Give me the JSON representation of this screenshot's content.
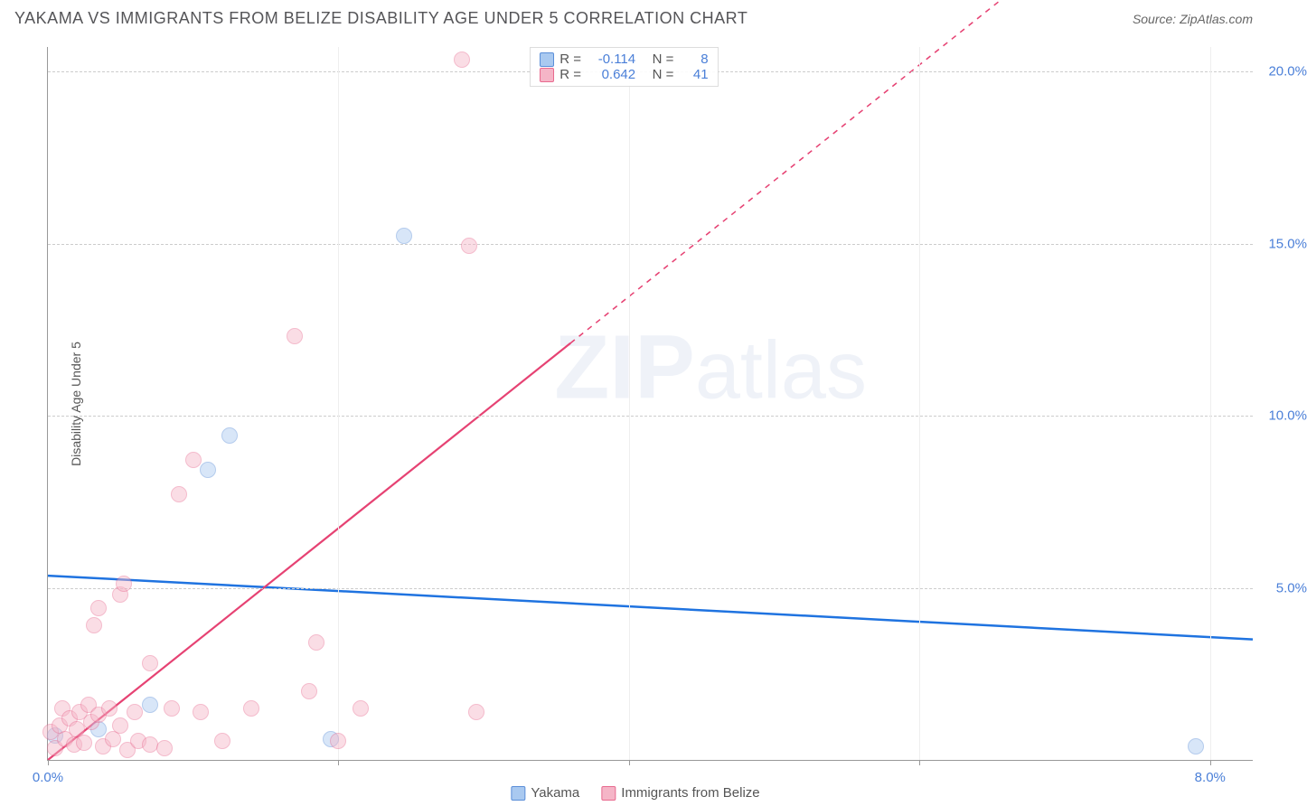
{
  "header": {
    "title": "YAKAMA VS IMMIGRANTS FROM BELIZE DISABILITY AGE UNDER 5 CORRELATION CHART",
    "source": "Source: ZipAtlas.com"
  },
  "watermark": {
    "bold": "ZIP",
    "rest": "atlas"
  },
  "chart": {
    "type": "scatter",
    "y_axis_label": "Disability Age Under 5",
    "xlim": [
      0,
      8.3
    ],
    "ylim": [
      0,
      20.7
    ],
    "x_ticks": [
      0,
      2,
      4,
      6,
      8
    ],
    "x_tick_labels": [
      "0.0%",
      "",
      "",
      "",
      "8.0%"
    ],
    "y_ticks": [
      5,
      10,
      15,
      20
    ],
    "y_tick_labels": [
      "5.0%",
      "10.0%",
      "15.0%",
      "20.0%"
    ],
    "background_color": "#ffffff",
    "grid_color": "#cccccc",
    "axis_color": "#999999",
    "tick_label_color": "#4a7fd8",
    "tick_label_fontsize": 15,
    "marker_radius": 9,
    "marker_opacity": 0.45,
    "series": [
      {
        "name": "Yakama",
        "color_fill": "#a9c9f0",
        "color_stroke": "#5a8ed8",
        "R": "-0.114",
        "N": "8",
        "trend": {
          "y_at_x0": 5.35,
          "y_at_xmax": 3.5,
          "color": "#1f73e0",
          "width": 2.5,
          "dash_from_x": null
        },
        "points": [
          {
            "x": 0.05,
            "y": 0.7
          },
          {
            "x": 0.35,
            "y": 0.9
          },
          {
            "x": 0.7,
            "y": 1.6
          },
          {
            "x": 1.1,
            "y": 8.4
          },
          {
            "x": 1.25,
            "y": 9.4
          },
          {
            "x": 1.95,
            "y": 0.6
          },
          {
            "x": 2.45,
            "y": 15.2
          },
          {
            "x": 7.9,
            "y": 0.4
          }
        ]
      },
      {
        "name": "Immigrants from Belize",
        "color_fill": "#f5b5c7",
        "color_stroke": "#e86a8f",
        "R": "0.642",
        "N": "41",
        "trend": {
          "y_at_x0": 0.0,
          "y_at_xmax": 27.9,
          "color": "#e64273",
          "width": 2.2,
          "dash_from_x": 3.6
        },
        "points": [
          {
            "x": 0.02,
            "y": 0.8
          },
          {
            "x": 0.05,
            "y": 0.35
          },
          {
            "x": 0.08,
            "y": 1.0
          },
          {
            "x": 0.1,
            "y": 1.5
          },
          {
            "x": 0.12,
            "y": 0.6
          },
          {
            "x": 0.15,
            "y": 1.2
          },
          {
            "x": 0.18,
            "y": 0.45
          },
          {
            "x": 0.2,
            "y": 0.9
          },
          {
            "x": 0.22,
            "y": 1.4
          },
          {
            "x": 0.25,
            "y": 0.5
          },
          {
            "x": 0.28,
            "y": 1.6
          },
          {
            "x": 0.3,
            "y": 1.1
          },
          {
            "x": 0.32,
            "y": 3.9
          },
          {
            "x": 0.35,
            "y": 1.3
          },
          {
            "x": 0.35,
            "y": 4.4
          },
          {
            "x": 0.38,
            "y": 0.4
          },
          {
            "x": 0.42,
            "y": 1.5
          },
          {
            "x": 0.45,
            "y": 0.6
          },
          {
            "x": 0.5,
            "y": 4.8
          },
          {
            "x": 0.5,
            "y": 1.0
          },
          {
            "x": 0.52,
            "y": 5.1
          },
          {
            "x": 0.55,
            "y": 0.3
          },
          {
            "x": 0.6,
            "y": 1.4
          },
          {
            "x": 0.62,
            "y": 0.55
          },
          {
            "x": 0.7,
            "y": 0.45
          },
          {
            "x": 0.7,
            "y": 2.8
          },
          {
            "x": 0.8,
            "y": 0.35
          },
          {
            "x": 0.85,
            "y": 1.5
          },
          {
            "x": 0.9,
            "y": 7.7
          },
          {
            "x": 1.0,
            "y": 8.7
          },
          {
            "x": 1.05,
            "y": 1.4
          },
          {
            "x": 1.2,
            "y": 0.55
          },
          {
            "x": 1.4,
            "y": 1.5
          },
          {
            "x": 1.7,
            "y": 12.3
          },
          {
            "x": 1.8,
            "y": 2.0
          },
          {
            "x": 1.85,
            "y": 3.4
          },
          {
            "x": 2.0,
            "y": 0.55
          },
          {
            "x": 2.15,
            "y": 1.5
          },
          {
            "x": 2.85,
            "y": 20.3
          },
          {
            "x": 2.9,
            "y": 14.9
          },
          {
            "x": 2.95,
            "y": 1.4
          }
        ]
      }
    ],
    "bottom_legend": [
      {
        "label": "Yakama",
        "fill": "#a9c9f0",
        "stroke": "#5a8ed8"
      },
      {
        "label": "Immigrants from Belize",
        "fill": "#f5b5c7",
        "stroke": "#e86a8f"
      }
    ]
  }
}
